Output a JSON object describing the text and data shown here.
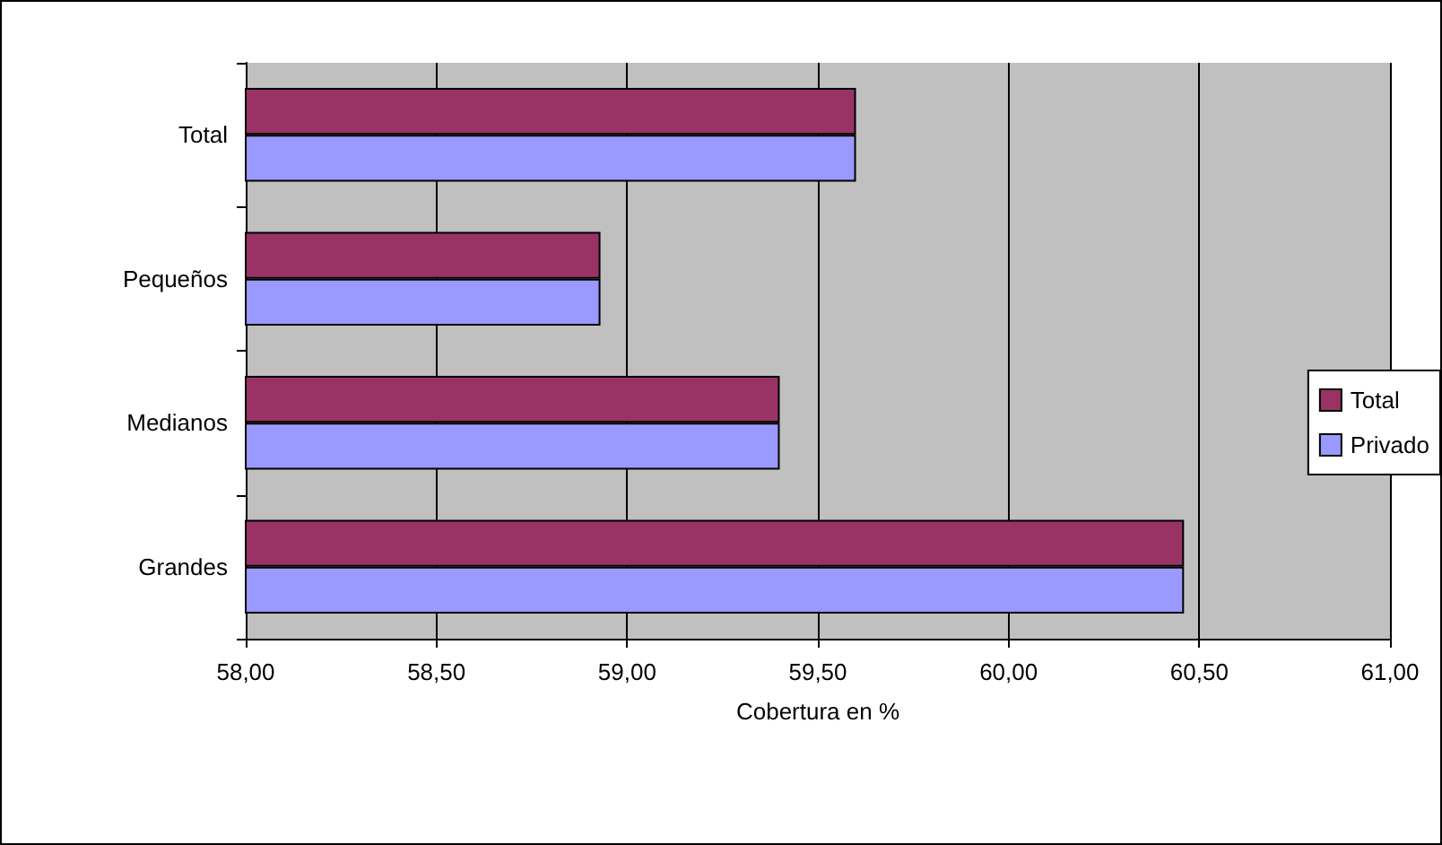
{
  "chart_data": {
    "type": "bar",
    "orientation": "horizontal",
    "xlabel": "Cobertura en %",
    "categories": [
      "Total",
      "Pequeños",
      "Medianos",
      "Grandes"
    ],
    "series": [
      {
        "name": "Total",
        "color": "#993366",
        "values": [
          59.6,
          58.93,
          59.4,
          60.46
        ]
      },
      {
        "name": "Privado",
        "color": "#9999ff",
        "values": [
          59.6,
          58.93,
          59.4,
          60.46
        ]
      }
    ],
    "xlim": [
      58,
      61
    ],
    "xticks": [
      {
        "value": 58,
        "label": "58,00"
      },
      {
        "value": 58.5,
        "label": "58,50"
      },
      {
        "value": 59,
        "label": "59,00"
      },
      {
        "value": 59.5,
        "label": "59,50"
      },
      {
        "value": 60,
        "label": "60,00"
      },
      {
        "value": 60.5,
        "label": "60,50"
      },
      {
        "value": 61,
        "label": "61,00"
      }
    ],
    "grid": "x",
    "legend": "right"
  }
}
